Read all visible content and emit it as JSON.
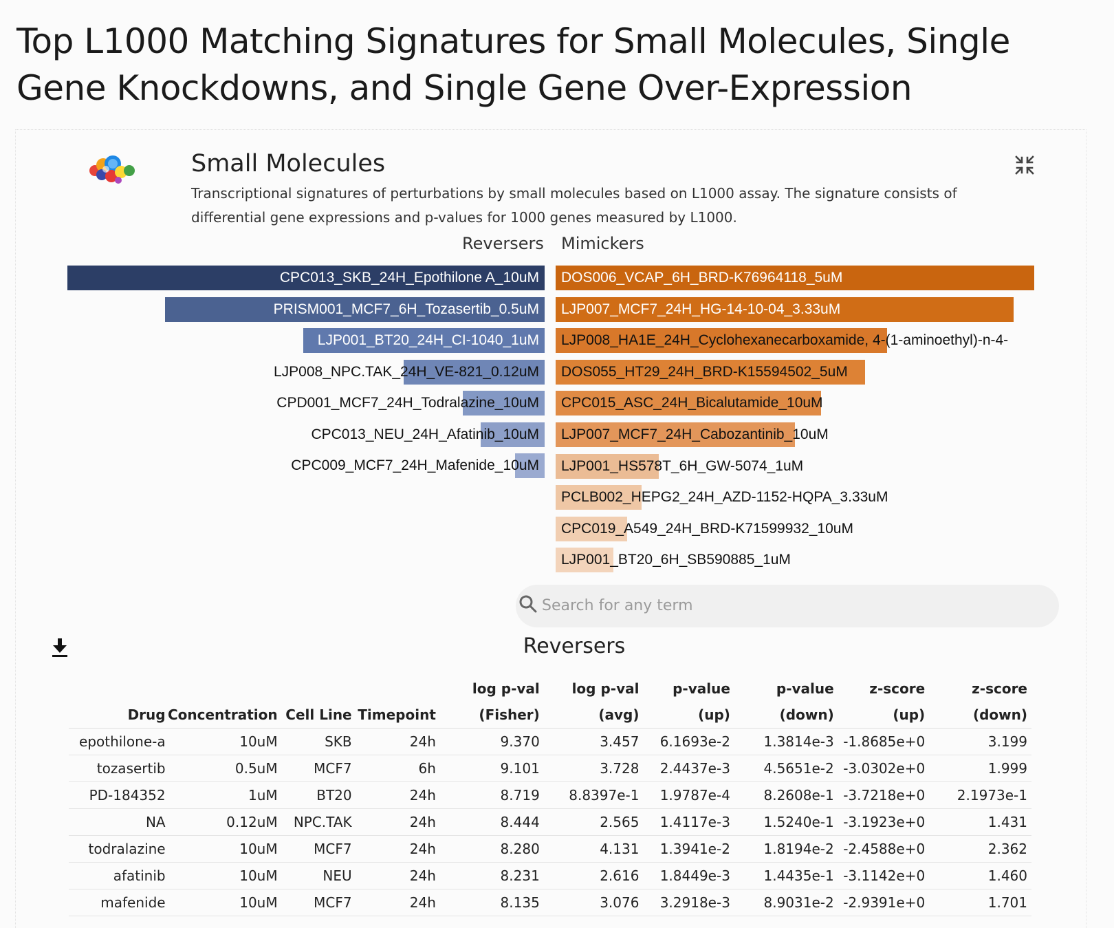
{
  "page": {
    "title": "Top L1000 Matching Signatures for Small Molecules, Single Gene Knockdowns, and Single Gene Over-Expression"
  },
  "section": {
    "title": "Small Molecules",
    "description": "Transcriptional signatures of perturbations by small molecules based on L1000 assay. The signature consists of differential gene expressions and p-values for 1000 genes measured by L1000.",
    "icons": {
      "logo": "bubble-cluster-logo",
      "collapse": "compress-arrows-icon"
    }
  },
  "bars": {
    "reversers_title": "Reversers",
    "mimickers_title": "Mimickers",
    "reversers": [
      {
        "label": "CPC013_SKB_24H_Epothilone A_10uM",
        "value": 1.0,
        "color": "#2c3e66"
      },
      {
        "label": "PRISM001_MCF7_6H_Tozasertib_0.5uM",
        "value": 0.795,
        "color": "#4b6291"
      },
      {
        "label": "LJP001_BT20_24H_CI-1040_1uM",
        "value": 0.506,
        "color": "#6079ad"
      },
      {
        "label": "LJP008_NPC.TAK_24H_VE-821_0.12uM",
        "value": 0.296,
        "color": "#6f86b6"
      },
      {
        "label": "CPD001_MCF7_24H_Todralazine_10uM",
        "value": 0.172,
        "color": "#8398c4"
      },
      {
        "label": "CPC013_NEU_24H_Afatinib_10uM",
        "value": 0.134,
        "color": "#8d9fc8"
      },
      {
        "label": "CPC009_MCF7_24H_Mafenide_10uM",
        "value": 0.062,
        "color": "#9aaad0"
      }
    ],
    "mimickers": [
      {
        "label": "DOS006_VCAP_6H_BRD-K76964118_5uM",
        "value": 1.0,
        "color": "#c9650f"
      },
      {
        "label": "LJP007_MCF7_24H_HG-14-10-04_3.33uM",
        "value": 0.957,
        "color": "#d06d16"
      },
      {
        "label": "LJP008_HA1E_24H_Cyclohexanecarboxamide, 4-(1-aminoethyl)-n-4-",
        "value": 0.693,
        "color": "#d8782a"
      },
      {
        "label": "DOS055_HT29_24H_BRD-K15594502_5uM",
        "value": 0.646,
        "color": "#dd8235"
      },
      {
        "label": "CPC015_ASC_24H_Bicalutamide_10uM",
        "value": 0.555,
        "color": "#e08b45"
      },
      {
        "label": "LJP007_MCF7_24H_Cabozantinib_10uM",
        "value": 0.5,
        "color": "#e3965a"
      },
      {
        "label": "LJP001_HS578T_6H_GW-5074_1uM",
        "value": 0.216,
        "color": "#ebbc95"
      },
      {
        "label": "PCLB002_HEPG2_24H_AZD-1152-HQPA_3.33uM",
        "value": 0.18,
        "color": "#efc7a5"
      },
      {
        "label": "CPC019_A549_24H_BRD-K71599932_10uM",
        "value": 0.15,
        "color": "#f1ceb1"
      },
      {
        "label": "LJP001_BT20_6H_SB590885_1uM",
        "value": 0.12,
        "color": "#f3d4bb"
      }
    ]
  },
  "search": {
    "placeholder": "Search for any term",
    "value": ""
  },
  "table": {
    "title": "Reversers",
    "download_icon": "download-icon",
    "headers": [
      [
        "Drug"
      ],
      [
        "Concentration"
      ],
      [
        "Cell Line"
      ],
      [
        "Timepoint"
      ],
      [
        "log p-val",
        "(Fisher)"
      ],
      [
        "log p-val",
        "(avg)"
      ],
      [
        "p-value",
        "(up)"
      ],
      [
        "p-value",
        "(down)"
      ],
      [
        "z-score",
        "(up)"
      ],
      [
        "z-score",
        "(down)"
      ]
    ],
    "rows": [
      [
        "epothilone-a",
        "10uM",
        "SKB",
        "24h",
        "9.370",
        "3.457",
        "6.1693e-2",
        "1.3814e-3",
        "-1.8685e+0",
        "3.199"
      ],
      [
        "tozasertib",
        "0.5uM",
        "MCF7",
        "6h",
        "9.101",
        "3.728",
        "2.4437e-3",
        "4.5651e-2",
        "-3.0302e+0",
        "1.999"
      ],
      [
        "PD-184352",
        "1uM",
        "BT20",
        "24h",
        "8.719",
        "8.8397e-1",
        "1.9787e-4",
        "8.2608e-1",
        "-3.7218e+0",
        "2.1973e-1"
      ],
      [
        "NA",
        "0.12uM",
        "NPC.TAK",
        "24h",
        "8.444",
        "2.565",
        "1.4117e-3",
        "1.5240e-1",
        "-3.1923e+0",
        "1.431"
      ],
      [
        "todralazine",
        "10uM",
        "MCF7",
        "24h",
        "8.280",
        "4.131",
        "1.3941e-2",
        "1.8194e-2",
        "-2.4588e+0",
        "2.362"
      ],
      [
        "afatinib",
        "10uM",
        "NEU",
        "24h",
        "8.231",
        "2.616",
        "1.8449e-3",
        "1.4435e-1",
        "-3.1142e+0",
        "1.460"
      ],
      [
        "mafenide",
        "10uM",
        "MCF7",
        "24h",
        "8.135",
        "3.076",
        "3.2918e-3",
        "8.9031e-2",
        "-2.9391e+0",
        "1.701"
      ]
    ]
  }
}
